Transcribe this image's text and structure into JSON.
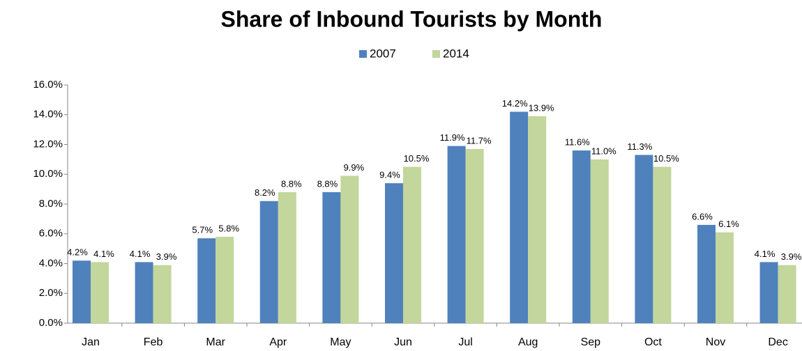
{
  "chart_data": {
    "type": "bar",
    "title": "Share of Inbound Tourists by Month",
    "categories": [
      "Jan",
      "Feb",
      "Mar",
      "Apr",
      "May",
      "Jun",
      "Jul",
      "Aug",
      "Sep",
      "Oct",
      "Nov",
      "Dec"
    ],
    "series": [
      {
        "name": "2007",
        "color": "#4f81bd",
        "values": [
          4.2,
          4.1,
          5.7,
          8.2,
          8.8,
          9.4,
          11.9,
          14.2,
          11.6,
          11.3,
          6.6,
          4.1
        ],
        "value_labels": [
          "4.2%",
          "4.1%",
          "5.7%",
          "8.2%",
          "8.8%",
          "9.4%",
          "11.9%",
          "14.2%",
          "11.6%",
          "11.3%",
          "6.6%",
          "4.1%"
        ]
      },
      {
        "name": "2014",
        "color": "#c3d69b",
        "values": [
          4.1,
          3.9,
          5.8,
          8.8,
          9.9,
          10.5,
          11.7,
          13.9,
          11.0,
          10.5,
          6.1,
          3.9
        ],
        "value_labels": [
          "4.1%",
          "3.9%",
          "5.8%",
          "8.8%",
          "9.9%",
          "10.5%",
          "11.7%",
          "13.9%",
          "11.0%",
          "10.5%",
          "6.1%",
          "3.9%"
        ]
      }
    ],
    "ylim": [
      0,
      16
    ],
    "yticks": [
      {
        "value": 0,
        "label": "0.0%"
      },
      {
        "value": 2,
        "label": "2.0%"
      },
      {
        "value": 4,
        "label": "4.0%"
      },
      {
        "value": 6,
        "label": "6.0%"
      },
      {
        "value": 8,
        "label": "8.0%"
      },
      {
        "value": 10,
        "label": "10.0%"
      },
      {
        "value": 12,
        "label": "12.0%"
      },
      {
        "value": 14,
        "label": "14.0%"
      },
      {
        "value": 16,
        "label": "16.0%"
      }
    ],
    "legend": "top"
  }
}
